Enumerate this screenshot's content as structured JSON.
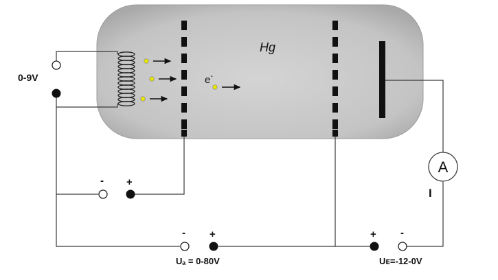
{
  "colors": {
    "tube_fill": "#c4c4c4",
    "wire": "#3a3a3a",
    "electron": "#e6e600",
    "terminal_fill_solid": "#111111",
    "terminal_fill_open": "#ffffff"
  },
  "labels": {
    "gas": "Hg",
    "electron": "e",
    "electron_sup": "-",
    "heater_voltage": "0-9V",
    "grid_minus": "-",
    "grid_plus": "+",
    "acc_minus": "-",
    "acc_plus": "+",
    "acc_voltage": "Uₐ = 0-80V",
    "ret_plus": "+",
    "ret_minus": "-",
    "ret_voltage": "Uᴇ=-12-0V",
    "ammeter": "A",
    "current": "I"
  },
  "icons": {
    "cathode": "filament-coil-icon",
    "ammeter": "ammeter-icon"
  }
}
